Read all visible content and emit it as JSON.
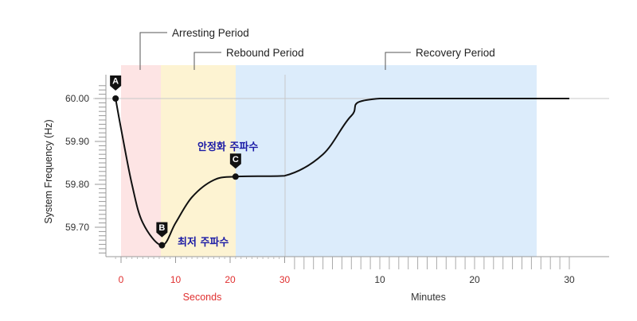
{
  "chart_data": {
    "type": "line",
    "ylabel": "System Frequency (Hz)",
    "ylim": [
      59.64,
      60.04
    ],
    "y_ticks": [
      "60.00",
      "59.90",
      "59.80",
      "59.70"
    ],
    "x_segments": [
      {
        "unit": "Seconds",
        "ticks": [
          "0",
          "10",
          "20",
          "30"
        ],
        "color": "#e03030"
      },
      {
        "unit": "Minutes",
        "ticks": [
          "10",
          "20",
          "30"
        ],
        "color": "#333333"
      }
    ],
    "periods": [
      {
        "name": "Arresting Period",
        "color": "#fde4e4"
      },
      {
        "name": "Rebound Period",
        "color": "#fdf3d2"
      },
      {
        "name": "Recovery Period",
        "color": "#dcecfb"
      }
    ],
    "series": [
      {
        "points": [
          {
            "x_s": -1,
            "y": 60.0
          },
          {
            "x_s": 0,
            "y": 59.93
          },
          {
            "x_s": 2,
            "y": 59.8
          },
          {
            "x_s": 4,
            "y": 59.71
          },
          {
            "x_s": 7.5,
            "y": 59.658
          },
          {
            "x_s": 10,
            "y": 59.71
          },
          {
            "x_s": 13,
            "y": 59.77
          },
          {
            "x_s": 17,
            "y": 59.81
          },
          {
            "x_s": 21,
            "y": 59.818
          },
          {
            "x_s": 30,
            "y": 59.82
          },
          {
            "x_min": 4,
            "y": 59.87
          },
          {
            "x_min": 7,
            "y": 59.96
          },
          {
            "x_min": 10,
            "y": 60.0
          },
          {
            "x_min": 30,
            "y": 60.0
          }
        ]
      }
    ],
    "markers": [
      {
        "letter": "A",
        "x_s": -1,
        "y": 60.0
      },
      {
        "letter": "B",
        "x_s": 7.5,
        "y": 59.658
      },
      {
        "letter": "C",
        "x_s": 21,
        "y": 59.818
      }
    ],
    "annotations": [
      {
        "text": "안정화 주파수",
        "color": "#1a1aa6"
      },
      {
        "text": "최저 주파수",
        "color": "#1a1aa6"
      }
    ]
  }
}
